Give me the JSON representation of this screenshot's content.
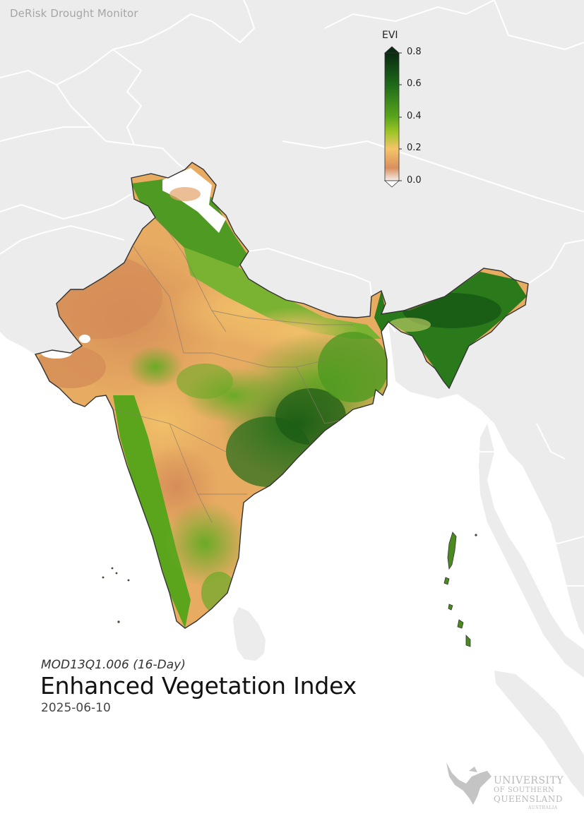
{
  "watermark": "DeRisk Drought Monitor",
  "colorbar": {
    "title": "EVI",
    "ticks": [
      "0.8",
      "0.6",
      "0.4",
      "0.2",
      "0.0"
    ],
    "min": 0.0,
    "max": 0.8,
    "colors": {
      "top": "#0a2a12",
      "high": "#1e6a1a",
      "mid": "#5aa51c",
      "lowmid": "#9ec525",
      "low": "#f5c46a",
      "bottom": "#d98f5e",
      "min": "#f4eeea"
    }
  },
  "product": "MOD13Q1.006 (16-Day)",
  "title": "Enhanced Vegetation Index",
  "date": "2025-06-10",
  "logo": {
    "line1": "UNIVERSITY",
    "line2": "OF SOUTHERN",
    "line3": "QUEENSLAND",
    "line4": "AUSTRALIA",
    "icon": "phoenix-icon"
  },
  "map_colors": {
    "land": "#ececec",
    "border": "#ffffff",
    "water": "#ffffff",
    "dry": "#d9955f",
    "semi_dry": "#ecb866",
    "green": "#6aaa26",
    "dense": "#1f6a18",
    "outline": "#333333"
  }
}
